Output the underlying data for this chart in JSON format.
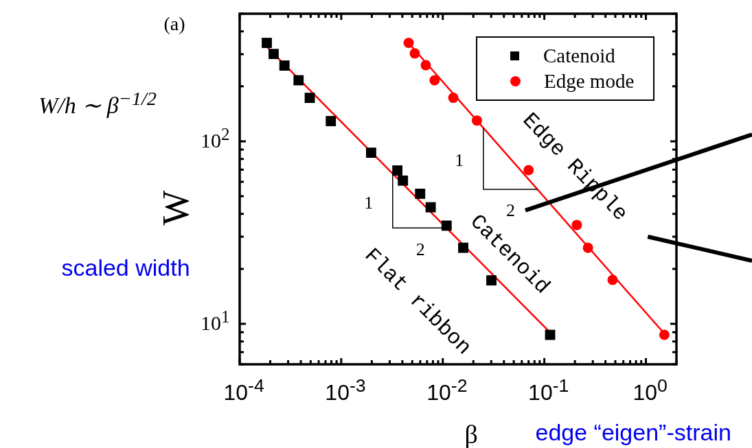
{
  "chart_data": {
    "type": "scatter",
    "xlabel": "β",
    "ylabel": "W",
    "log": "xy",
    "xlim": [
      0.0001,
      2
    ],
    "ylim": [
      6,
      500
    ],
    "xticks": [
      {
        "value": 0.0001,
        "label": "10$^{-4}$"
      },
      {
        "value": 0.0002,
        "label": null
      },
      {
        "value": 0.0003,
        "label": null
      },
      {
        "value": 0.0004,
        "label": null
      },
      {
        "value": 0.0005,
        "label": null
      },
      {
        "value": 0.0006,
        "label": null
      },
      {
        "value": 0.0007,
        "label": null
      },
      {
        "value": 0.0008,
        "label": null
      },
      {
        "value": 0.0009,
        "label": null
      },
      {
        "value": 0.001,
        "label": "10$^{-3}$"
      },
      {
        "value": 0.002,
        "label": null
      },
      {
        "value": 0.003,
        "label": null
      },
      {
        "value": 0.004,
        "label": null
      },
      {
        "value": 0.005,
        "label": null
      },
      {
        "value": 0.006,
        "label": null
      },
      {
        "value": 0.007,
        "label": null
      },
      {
        "value": 0.008,
        "label": null
      },
      {
        "value": 0.009,
        "label": null
      },
      {
        "value": 0.01,
        "label": "10$^{-2}$"
      },
      {
        "value": 0.02,
        "label": null
      },
      {
        "value": 0.03,
        "label": null
      },
      {
        "value": 0.04,
        "label": null
      },
      {
        "value": 0.05,
        "label": null
      },
      {
        "value": 0.06,
        "label": null
      },
      {
        "value": 0.07,
        "label": null
      },
      {
        "value": 0.08,
        "label": null
      },
      {
        "value": 0.09,
        "label": null
      },
      {
        "value": 0.1,
        "label": "10$^{-1}$"
      },
      {
        "value": 0.2,
        "label": null
      },
      {
        "value": 0.3,
        "label": null
      },
      {
        "value": 0.4,
        "label": null
      },
      {
        "value": 0.5,
        "label": null
      },
      {
        "value": 0.6,
        "label": null
      },
      {
        "value": 0.7,
        "label": null
      },
      {
        "value": 0.8,
        "label": null
      },
      {
        "value": 0.9,
        "label": null
      },
      {
        "value": 1,
        "label": "10$^{0}$"
      },
      {
        "value": 2,
        "label": null
      }
    ],
    "yticks": [
      {
        "value": 6,
        "label": null
      },
      {
        "value": 7,
        "label": null
      },
      {
        "value": 8,
        "label": null
      },
      {
        "value": 9,
        "label": null
      },
      {
        "value": 10,
        "label": "10$^{1}$"
      },
      {
        "value": 20,
        "label": null
      },
      {
        "value": 30,
        "label": null
      },
      {
        "value": 40,
        "label": null
      },
      {
        "value": 50,
        "label": null
      },
      {
        "value": 60,
        "label": null
      },
      {
        "value": 70,
        "label": null
      },
      {
        "value": 80,
        "label": null
      },
      {
        "value": 90,
        "label": null
      },
      {
        "value": 100,
        "label": "10$^{2}$"
      },
      {
        "value": 200,
        "label": null
      },
      {
        "value": 300,
        "label": null
      },
      {
        "value": 400,
        "label": null
      },
      {
        "value": 500,
        "label": null
      }
    ],
    "legend": "top right",
    "annotations": [
      "(a)",
      "W/h ∼ β$^{−1/2}$",
      "scaled width",
      "edge “eigen”-strain",
      {
        "text": "1",
        "x": 0.00321,
        "y": 66.5
      },
      {
        "text": "2",
        "x": 0.0109,
        "y": 33.5
      },
      {
        "text": "1",
        "x": 0.0251,
        "y": 118
      },
      {
        "text": "2",
        "x": 0.0855,
        "y": 54.5
      },
      {
        "text": "Flat ribbon",
        "x": 0.0181,
        "y": 25.2
      },
      {
        "text": "Catenoid",
        "x": 0.0299,
        "y": 19
      },
      {
        "text": "Edge Ripple",
        "x": 0.1007,
        "y": 49.2
      }
    ],
    "series": [
      {
        "name": "Catenoid",
        "color": "#000000",
        "marker": "square",
        "x": [
          0.000185,
          0.000216,
          0.000276,
          0.00038,
          0.00049,
          0.00079,
          0.00197,
          0.00357,
          0.00405,
          0.00598,
          0.0076,
          0.0109,
          0.0159,
          0.0301,
          0.114
        ],
        "values": [
          346,
          301,
          260,
          216,
          173,
          129,
          86.6,
          69.2,
          60.9,
          51.6,
          43.5,
          34.5,
          26.1,
          17.3,
          8.7
        ]
      },
      {
        "name": "Edge mode",
        "color": "#ff0000",
        "marker": "circle",
        "x": [
          0.00461,
          0.0053,
          0.0068,
          0.0083,
          0.0127,
          0.0217,
          0.07,
          0.209,
          0.269,
          0.47,
          1.52
        ],
        "values": [
          346,
          303,
          261,
          216,
          173,
          130,
          69.5,
          34.8,
          26.1,
          17.4,
          8.7
        ]
      },
      {
        "type": "line",
        "color": "#ff0000",
        "marker": "none",
        "x": [
          0.000185,
          0.111
        ],
        "values": [
          330,
          9.1
        ]
      },
      {
        "type": "line",
        "color": "#ff0000",
        "marker": "none",
        "x": [
          0.0046,
          1.53
        ],
        "values": [
          346,
          8.8
        ]
      }
    ]
  }
}
